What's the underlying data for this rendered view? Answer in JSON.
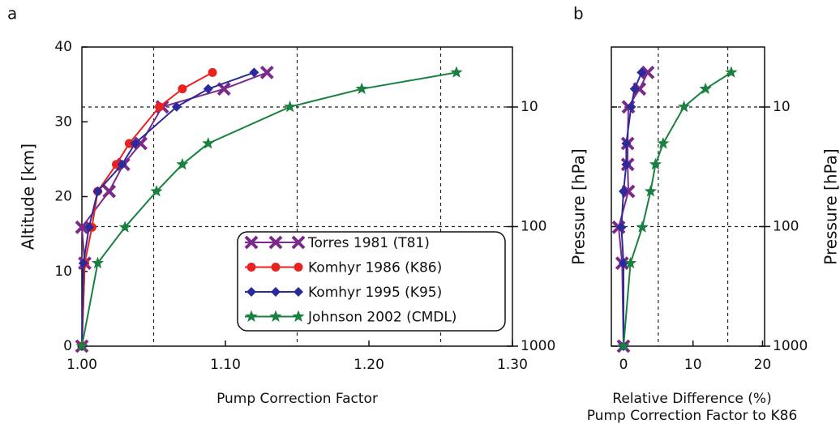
{
  "chart_data": [
    {
      "type": "line",
      "panel_label": "a",
      "xlabel": "Pump Correction Factor",
      "ylabel": "Altitude [km]",
      "y2label": "Pressure [hPa]",
      "xlim": [
        1.0,
        1.3
      ],
      "xticks": [
        {
          "value": 1.0,
          "label": "1.00"
        },
        {
          "value": 1.1,
          "label": "1.10"
        },
        {
          "value": 1.2,
          "label": "1.20"
        },
        {
          "value": 1.3,
          "label": "1.30"
        }
      ],
      "xgrid": [
        1.05,
        1.15,
        1.25
      ],
      "ylim": [
        0,
        40
      ],
      "yticks": [
        0,
        10,
        20,
        30,
        40
      ],
      "y2lim": [
        1000,
        3.15
      ],
      "y2ticks": [
        1000,
        100,
        10
      ],
      "y2log": true,
      "y2grid": [
        100,
        10
      ],
      "series": [
        {
          "name": "Torres 1981 (T81)",
          "color": "#7b2a8b",
          "marker": "x",
          "x": [
            1.0,
            1.002,
            1.0,
            1.019,
            1.029,
            1.041,
            1.056,
            1.099,
            1.129
          ],
          "values": [
            0,
            11.1,
            15.9,
            20.7,
            24.3,
            27.1,
            32.0,
            34.4,
            36.6
          ]
        },
        {
          "name": "Komhyr 1986 (K86)",
          "color": "#e8221f",
          "marker": "circle",
          "x": [
            1.0,
            1.002,
            1.007,
            1.011,
            1.024,
            1.033,
            1.054,
            1.07,
            1.091
          ],
          "values": [
            0,
            11.1,
            15.9,
            20.7,
            24.3,
            27.1,
            32.0,
            34.4,
            36.6
          ]
        },
        {
          "name": "Komhyr 1995 (K95)",
          "color": "#2a2a9a",
          "marker": "diamond",
          "x": [
            1.0,
            1.001,
            1.005,
            1.011,
            1.028,
            1.037,
            1.066,
            1.088,
            1.12
          ],
          "values": [
            0,
            11.1,
            15.9,
            20.7,
            24.3,
            27.1,
            32.0,
            34.4,
            36.6
          ]
        },
        {
          "name": "Johnson 2002 (CMDL)",
          "color": "#1a8040",
          "marker": "star",
          "x": [
            1.0,
            1.011,
            1.03,
            1.052,
            1.07,
            1.088,
            1.145,
            1.195,
            1.261
          ],
          "values": [
            0,
            11.1,
            15.9,
            20.7,
            24.3,
            27.1,
            32.0,
            34.4,
            36.6
          ]
        }
      ]
    },
    {
      "type": "line",
      "panel_label": "b",
      "xlabel": [
        "Relative Difference (%)",
        "Pump Correction Factor to K86"
      ],
      "y2label": "Pressure [hPa]",
      "xlim": [
        -1.75,
        20.3
      ],
      "xticks": [
        0,
        10,
        20
      ],
      "xgrid": [
        5,
        15
      ],
      "ylim": [
        0,
        40
      ],
      "y2lim": [
        1000,
        3.15
      ],
      "y2ticks": [
        1000,
        100,
        10
      ],
      "y2log": true,
      "y2grid": [
        100,
        10
      ],
      "series": [
        {
          "color": "#7b2a8b",
          "marker": "x",
          "x": [
            0,
            -0.2,
            -0.7,
            0.7,
            0.6,
            0.6,
            0.7,
            2.3,
            3.5
          ],
          "values": [
            0,
            11.1,
            15.9,
            20.7,
            24.3,
            27.1,
            32.0,
            34.4,
            36.6
          ]
        },
        {
          "color": "#2a2a9a",
          "marker": "diamond",
          "x": [
            0,
            0,
            -0.3,
            0,
            0.4,
            0.4,
            1.1,
            1.6,
            2.6
          ],
          "values": [
            0,
            11.1,
            15.9,
            20.7,
            24.3,
            27.1,
            32.0,
            34.4,
            36.6
          ]
        },
        {
          "color": "#1a8040",
          "marker": "star",
          "x": [
            0,
            1.0,
            2.7,
            3.9,
            4.6,
            5.7,
            8.7,
            11.8,
            15.5
          ],
          "values": [
            0,
            11.1,
            15.9,
            20.7,
            24.3,
            27.1,
            32.0,
            34.4,
            36.6
          ]
        }
      ]
    }
  ]
}
